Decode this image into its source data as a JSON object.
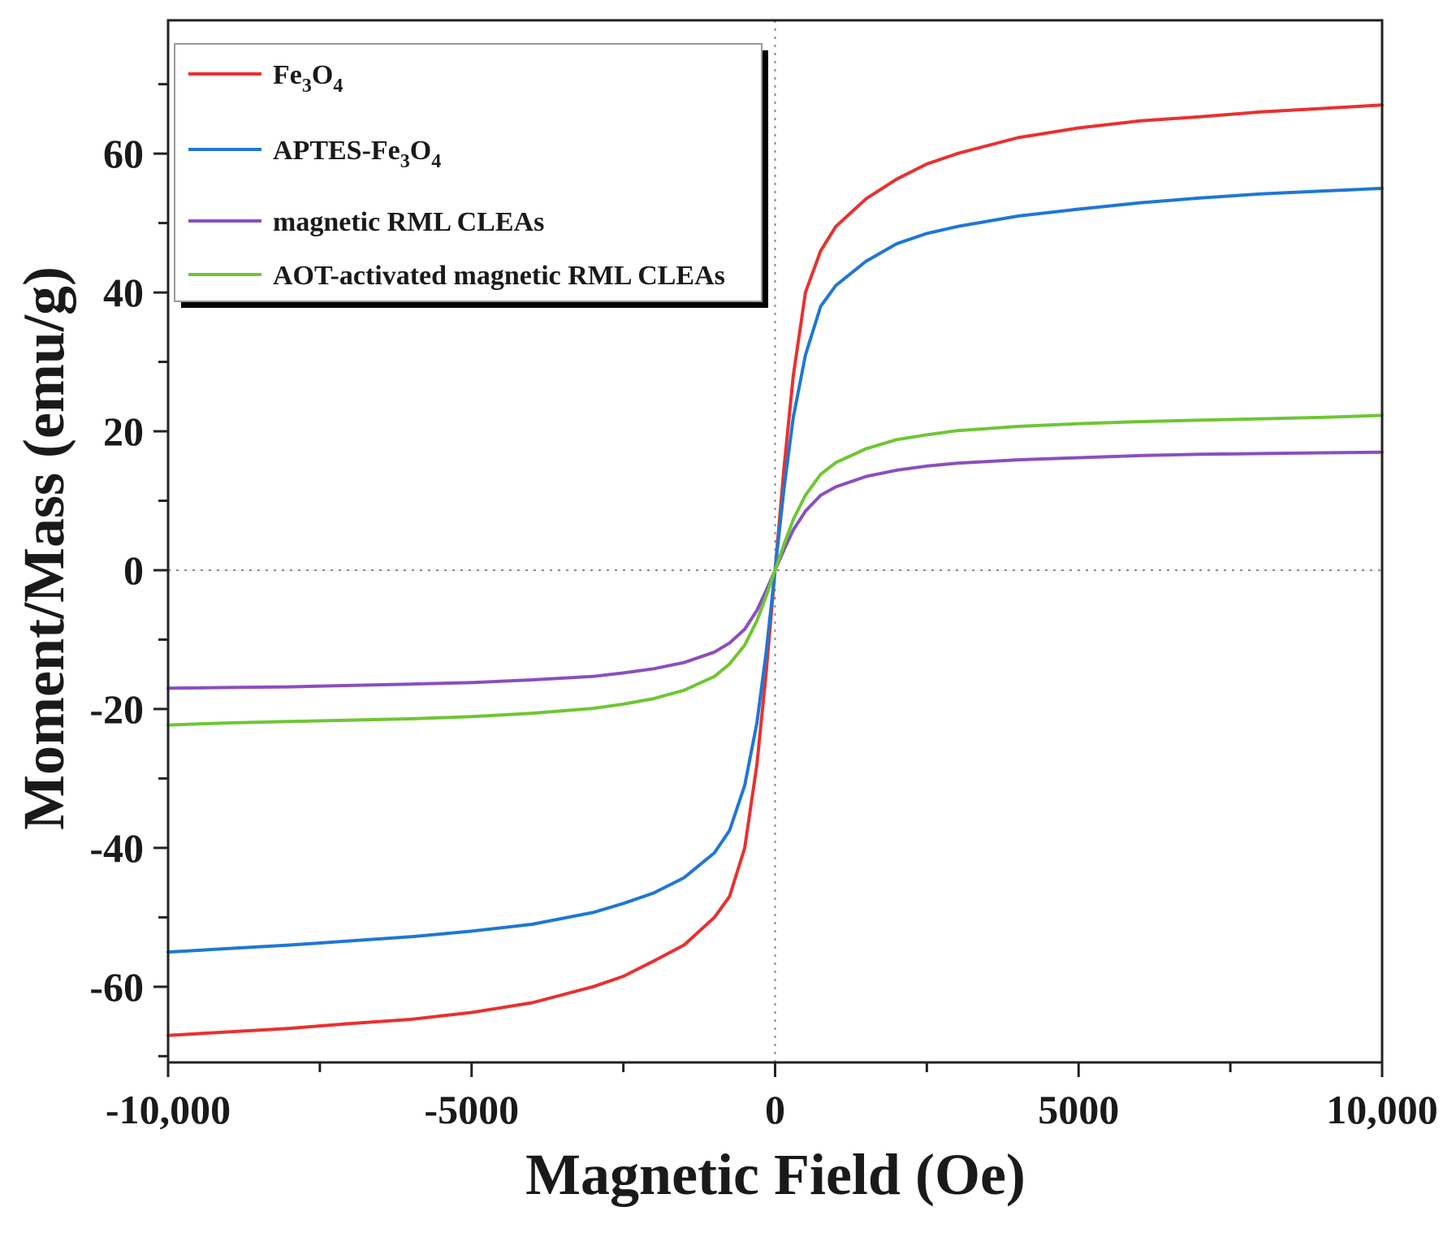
{
  "chart_data": {
    "type": "line",
    "title": "",
    "xlabel": "Magnetic Field (Oe)",
    "ylabel": "Moment/Mass (emu/g)",
    "xlim": [
      -10000,
      10000
    ],
    "ylim": [
      -75,
      75
    ],
    "x_ticks": [
      -10000,
      -5000,
      0,
      5000,
      10000
    ],
    "x_tick_labels": [
      "-10,000",
      "-5000",
      "0",
      "5000",
      "10,000"
    ],
    "y_ticks": [
      -60,
      -40,
      -20,
      0,
      20,
      40,
      60
    ],
    "y_tick_labels": [
      "-60",
      "-40",
      "-20",
      "0",
      "20",
      "40",
      "60"
    ],
    "zero_reference_lines": true,
    "legend_position": "top-left",
    "x": [
      -10000,
      -9000,
      -8000,
      -7000,
      -6000,
      -5000,
      -4000,
      -3000,
      -2500,
      -2000,
      -1500,
      -1000,
      -750,
      -500,
      -300,
      -150,
      0,
      150,
      300,
      500,
      750,
      1000,
      1500,
      2000,
      2500,
      3000,
      4000,
      5000,
      6000,
      7000,
      8000,
      9000,
      10000
    ],
    "series": [
      {
        "name": "Fe3O4",
        "label_parts": [
          "Fe",
          "3",
          "O",
          "4"
        ],
        "color": "#e8312f",
        "values": [
          -67,
          -66.5,
          -66,
          -65.3,
          -64.7,
          -63.7,
          -62.3,
          -60,
          -58.5,
          -56.3,
          -54,
          -50,
          -47,
          -40,
          -28,
          -15,
          0,
          15,
          28,
          40,
          46,
          49.5,
          53.5,
          56.3,
          58.5,
          60,
          62.3,
          63.7,
          64.7,
          65.3,
          66,
          66.5,
          67
        ]
      },
      {
        "name": "APTES-Fe3O4",
        "label_parts": [
          "APTES-Fe",
          "3",
          "O",
          "4"
        ],
        "color": "#1f77d4",
        "values": [
          -55,
          -54.5,
          -54,
          -53.4,
          -52.8,
          -52,
          -51,
          -49.3,
          -48,
          -46.5,
          -44.3,
          -40.7,
          -37.5,
          -31,
          -22,
          -12,
          0,
          12,
          22,
          31,
          38,
          41,
          44.5,
          47,
          48.5,
          49.5,
          51,
          52,
          52.9,
          53.6,
          54.2,
          54.6,
          55
        ]
      },
      {
        "name": "magnetic RML CLEAs",
        "label_parts": [
          "magnetic RML CLEAs"
        ],
        "color": "#8a4fbf",
        "values": [
          -17,
          -16.9,
          -16.8,
          -16.6,
          -16.4,
          -16.2,
          -15.8,
          -15.3,
          -14.8,
          -14.2,
          -13.3,
          -11.8,
          -10.5,
          -8.5,
          -5.8,
          -3,
          0,
          3,
          5.8,
          8.5,
          10.8,
          12,
          13.5,
          14.4,
          15,
          15.4,
          15.9,
          16.2,
          16.5,
          16.7,
          16.8,
          16.9,
          17
        ]
      },
      {
        "name": "AOT-activated magnetic RML CLEAs",
        "label_parts": [
          "AOT-activated magnetic RML CLEAs"
        ],
        "color": "#6ec634",
        "values": [
          -22.3,
          -22,
          -21.8,
          -21.6,
          -21.4,
          -21.1,
          -20.6,
          -19.9,
          -19.3,
          -18.5,
          -17.3,
          -15.3,
          -13.5,
          -10.8,
          -7.3,
          -3.8,
          0,
          3.8,
          7.3,
          10.8,
          13.8,
          15.5,
          17.5,
          18.8,
          19.5,
          20.1,
          20.7,
          21.1,
          21.4,
          21.6,
          21.8,
          22,
          22.3
        ]
      }
    ]
  }
}
